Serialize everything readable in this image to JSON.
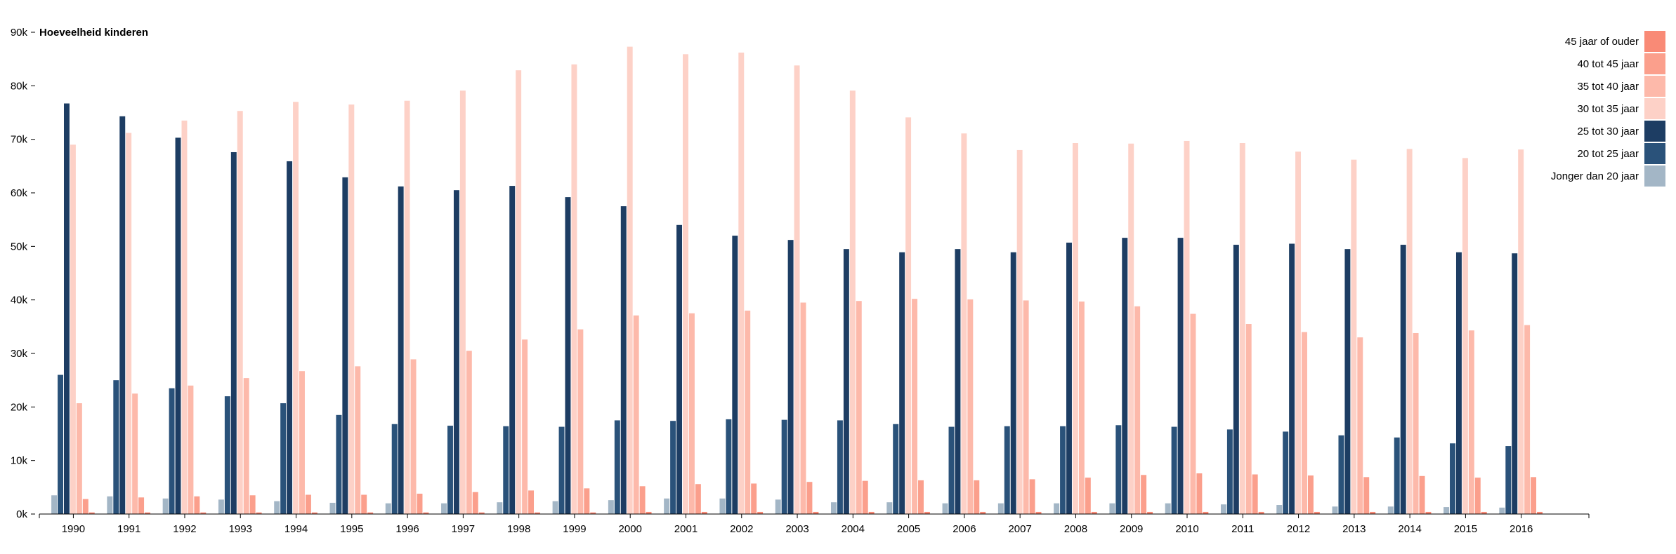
{
  "chart_data": {
    "type": "bar",
    "title": "",
    "ylabel": "Hoeveelheid kinderen",
    "xlabel": "",
    "ylim": [
      0,
      90000
    ],
    "yticks": [
      0,
      10000,
      20000,
      30000,
      40000,
      50000,
      60000,
      70000,
      80000,
      90000
    ],
    "ytick_labels": [
      "0k",
      "10k",
      "20k",
      "30k",
      "40k",
      "50k",
      "60k",
      "70k",
      "80k",
      "90k"
    ],
    "legend_position": "top-right",
    "grid": false,
    "categories": [
      "1990",
      "1991",
      "1992",
      "1993",
      "1994",
      "1995",
      "1996",
      "1997",
      "1998",
      "1999",
      "2000",
      "2001",
      "2002",
      "2003",
      "2004",
      "2005",
      "2006",
      "2007",
      "2008",
      "2009",
      "2010",
      "2011",
      "2012",
      "2013",
      "2014",
      "2015",
      "2016"
    ],
    "series": [
      {
        "name": "Jonger dan 20 jaar",
        "color": "#a3b6c6",
        "values": [
          3500,
          3300,
          2900,
          2700,
          2400,
          2100,
          2000,
          2000,
          2200,
          2400,
          2600,
          2900,
          2900,
          2700,
          2200,
          2200,
          2000,
          2000,
          2000,
          2000,
          2000,
          1800,
          1700,
          1400,
          1400,
          1300,
          1200
        ]
      },
      {
        "name": "20 tot 25 jaar",
        "color": "#2a527a",
        "values": [
          26000,
          25000,
          23500,
          22000,
          20700,
          18500,
          16800,
          16500,
          16400,
          16300,
          17500,
          17400,
          17700,
          17600,
          17500,
          16800,
          16300,
          16400,
          16400,
          16600,
          16300,
          15800,
          15400,
          14700,
          14300,
          13200,
          12700
        ]
      },
      {
        "name": "25 tot 30 jaar",
        "color": "#1d3d63",
        "values": [
          76700,
          74300,
          70300,
          67600,
          65900,
          62900,
          61200,
          60500,
          61300,
          59200,
          57500,
          54000,
          52000,
          51200,
          49500,
          48900,
          49500,
          48900,
          50700,
          51600,
          51600,
          50300,
          50500,
          49500,
          50300,
          48900,
          48700
        ]
      },
      {
        "name": "30 tot 35 jaar",
        "color": "#fdd1c7",
        "values": [
          69000,
          71200,
          73500,
          75300,
          77000,
          76500,
          77200,
          79100,
          82900,
          84000,
          87300,
          85900,
          86200,
          83800,
          79100,
          74100,
          71100,
          68000,
          69300,
          69200,
          69700,
          69300,
          67700,
          66200,
          68200,
          66500,
          68100
        ]
      },
      {
        "name": "35 tot 40 jaar",
        "color": "#fdb9aa",
        "values": [
          20700,
          22500,
          24000,
          25400,
          26700,
          27600,
          28900,
          30500,
          32600,
          34500,
          37100,
          37500,
          38000,
          39500,
          39800,
          40200,
          40100,
          39900,
          39700,
          38800,
          37400,
          35500,
          34000,
          33000,
          33800,
          34300,
          35300
        ]
      },
      {
        "name": "40 tot 45 jaar",
        "color": "#fb9f8c",
        "values": [
          2800,
          3100,
          3300,
          3500,
          3600,
          3600,
          3800,
          4100,
          4400,
          4800,
          5200,
          5600,
          5700,
          6000,
          6200,
          6300,
          6300,
          6500,
          6800,
          7300,
          7600,
          7400,
          7200,
          6900,
          7100,
          6800,
          6900
        ]
      },
      {
        "name": "45 jaar of ouder",
        "color": "#f98a76",
        "values": [
          300,
          300,
          300,
          300,
          300,
          300,
          300,
          300,
          300,
          300,
          400,
          400,
          400,
          400,
          400,
          400,
          400,
          400,
          400,
          400,
          400,
          400,
          400,
          400,
          400,
          400,
          400
        ]
      }
    ]
  }
}
